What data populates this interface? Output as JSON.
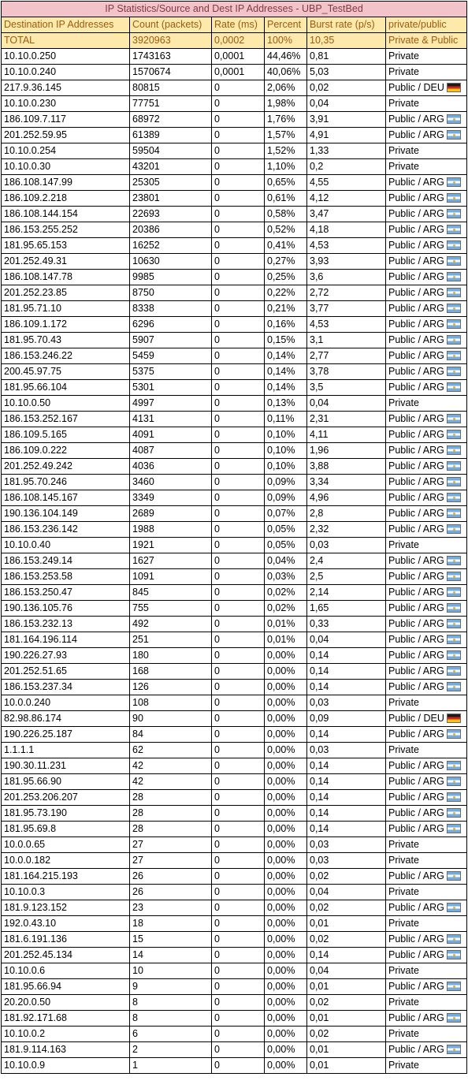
{
  "title": "IP Statistics/Source and Dest IP Addresses - UBP_TestBed",
  "columns": [
    "Destination IP Addresses",
    "Count (packets)",
    "Rate (ms)",
    "Percent",
    "Burst rate (p/s)",
    "private/public"
  ],
  "total": [
    "TOTAL",
    "3920963",
    "0,0002",
    "100%",
    "10,35",
    "Private & Public"
  ],
  "rows": [
    [
      "10.10.0.250",
      "1743163",
      "0,0001",
      "44,46%",
      "0,81",
      "Private",
      ""
    ],
    [
      "10.10.0.240",
      "1570674",
      "0,0001",
      "40,06%",
      "5,03",
      "Private",
      ""
    ],
    [
      "217.9.36.145",
      "80815",
      "0",
      "2,06%",
      "0,02",
      "Public / DEU",
      "deu"
    ],
    [
      "10.10.0.230",
      "77751",
      "0",
      "1,98%",
      "0,04",
      "Private",
      ""
    ],
    [
      "186.109.7.117",
      "68972",
      "0",
      "1,76%",
      "3,91",
      "Public / ARG",
      "arg"
    ],
    [
      "201.252.59.95",
      "61389",
      "0",
      "1,57%",
      "4,91",
      "Public / ARG",
      "arg"
    ],
    [
      "10.10.0.254",
      "59504",
      "0",
      "1,52%",
      "1,33",
      "Private",
      ""
    ],
    [
      "10.10.0.30",
      "43201",
      "0",
      "1,10%",
      "0,2",
      "Private",
      ""
    ],
    [
      "186.108.147.99",
      "25305",
      "0",
      "0,65%",
      "4,55",
      "Public / ARG",
      "arg"
    ],
    [
      "186.109.2.218",
      "23801",
      "0",
      "0,61%",
      "4,12",
      "Public / ARG",
      "arg"
    ],
    [
      "186.108.144.154",
      "22693",
      "0",
      "0,58%",
      "3,47",
      "Public / ARG",
      "arg"
    ],
    [
      "186.153.255.252",
      "20386",
      "0",
      "0,52%",
      "4,18",
      "Public / ARG",
      "arg"
    ],
    [
      "181.95.65.153",
      "16252",
      "0",
      "0,41%",
      "4,53",
      "Public / ARG",
      "arg"
    ],
    [
      "201.252.49.31",
      "10630",
      "0",
      "0,27%",
      "3,93",
      "Public / ARG",
      "arg"
    ],
    [
      "186.108.147.78",
      "9985",
      "0",
      "0,25%",
      "3,6",
      "Public / ARG",
      "arg"
    ],
    [
      "201.252.23.85",
      "8750",
      "0",
      "0,22%",
      "2,72",
      "Public / ARG",
      "arg"
    ],
    [
      "181.95.71.10",
      "8338",
      "0",
      "0,21%",
      "3,77",
      "Public / ARG",
      "arg"
    ],
    [
      "186.109.1.172",
      "6296",
      "0",
      "0,16%",
      "4,53",
      "Public / ARG",
      "arg"
    ],
    [
      "181.95.70.43",
      "5907",
      "0",
      "0,15%",
      "3,1",
      "Public / ARG",
      "arg"
    ],
    [
      "186.153.246.22",
      "5459",
      "0",
      "0,14%",
      "2,77",
      "Public / ARG",
      "arg"
    ],
    [
      "200.45.97.75",
      "5375",
      "0",
      "0,14%",
      "3,78",
      "Public / ARG",
      "arg"
    ],
    [
      "181.95.66.104",
      "5301",
      "0",
      "0,14%",
      "3,5",
      "Public / ARG",
      "arg"
    ],
    [
      "10.10.0.50",
      "4997",
      "0",
      "0,13%",
      "0,04",
      "Private",
      ""
    ],
    [
      "186.153.252.167",
      "4131",
      "0",
      "0,11%",
      "2,31",
      "Public / ARG",
      "arg"
    ],
    [
      "186.109.5.165",
      "4091",
      "0",
      "0,10%",
      "4,11",
      "Public / ARG",
      "arg"
    ],
    [
      "186.109.0.222",
      "4087",
      "0",
      "0,10%",
      "1,96",
      "Public / ARG",
      "arg"
    ],
    [
      "201.252.49.242",
      "4036",
      "0",
      "0,10%",
      "3,88",
      "Public / ARG",
      "arg"
    ],
    [
      "181.95.70.246",
      "3460",
      "0",
      "0,09%",
      "3,34",
      "Public / ARG",
      "arg"
    ],
    [
      "186.108.145.167",
      "3349",
      "0",
      "0,09%",
      "4,96",
      "Public / ARG",
      "arg"
    ],
    [
      "190.136.104.149",
      "2689",
      "0",
      "0,07%",
      "2,8",
      "Public / ARG",
      "arg"
    ],
    [
      "186.153.236.142",
      "1988",
      "0",
      "0,05%",
      "2,32",
      "Public / ARG",
      "arg"
    ],
    [
      "10.10.0.40",
      "1921",
      "0",
      "0,05%",
      "0,03",
      "Private",
      ""
    ],
    [
      "186.153.249.14",
      "1627",
      "0",
      "0,04%",
      "2,4",
      "Public / ARG",
      "arg"
    ],
    [
      "186.153.253.58",
      "1091",
      "0",
      "0,03%",
      "2,5",
      "Public / ARG",
      "arg"
    ],
    [
      "186.153.250.47",
      "845",
      "0",
      "0,02%",
      "2,14",
      "Public / ARG",
      "arg"
    ],
    [
      "190.136.105.76",
      "755",
      "0",
      "0,02%",
      "1,65",
      "Public / ARG",
      "arg"
    ],
    [
      "186.153.232.13",
      "492",
      "0",
      "0,01%",
      "0,33",
      "Public / ARG",
      "arg"
    ],
    [
      "181.164.196.114",
      "251",
      "0",
      "0,01%",
      "0,04",
      "Public / ARG",
      "arg"
    ],
    [
      "190.226.27.93",
      "180",
      "0",
      "0,00%",
      "0,14",
      "Public / ARG",
      "arg"
    ],
    [
      "201.252.51.65",
      "168",
      "0",
      "0,00%",
      "0,14",
      "Public / ARG",
      "arg"
    ],
    [
      "186.153.237.34",
      "126",
      "0",
      "0,00%",
      "0,14",
      "Public / ARG",
      "arg"
    ],
    [
      "10.0.0.240",
      "108",
      "0",
      "0,00%",
      "0,03",
      "Private",
      ""
    ],
    [
      "82.98.86.174",
      "90",
      "0",
      "0,00%",
      "0,09",
      "Public / DEU",
      "deu"
    ],
    [
      "190.226.25.187",
      "84",
      "0",
      "0,00%",
      "0,14",
      "Public / ARG",
      "arg"
    ],
    [
      "1.1.1.1",
      "62",
      "0",
      "0,00%",
      "0,03",
      "Private",
      ""
    ],
    [
      "190.30.11.231",
      "42",
      "0",
      "0,00%",
      "0,14",
      "Public / ARG",
      "arg"
    ],
    [
      "181.95.66.90",
      "42",
      "0",
      "0,00%",
      "0,14",
      "Public / ARG",
      "arg"
    ],
    [
      "201.253.206.207",
      "28",
      "0",
      "0,00%",
      "0,14",
      "Public / ARG",
      "arg"
    ],
    [
      "181.95.73.190",
      "28",
      "0",
      "0,00%",
      "0,14",
      "Public / ARG",
      "arg"
    ],
    [
      "181.95.69.8",
      "28",
      "0",
      "0,00%",
      "0,14",
      "Public / ARG",
      "arg"
    ],
    [
      "10.0.0.65",
      "27",
      "0",
      "0,00%",
      "0,03",
      "Private",
      ""
    ],
    [
      "10.0.0.182",
      "27",
      "0",
      "0,00%",
      "0,03",
      "Private",
      ""
    ],
    [
      "181.164.215.193",
      "26",
      "0",
      "0,00%",
      "0,02",
      "Public / ARG",
      "arg"
    ],
    [
      "10.10.0.3",
      "26",
      "0",
      "0,00%",
      "0,04",
      "Private",
      ""
    ],
    [
      "181.9.123.152",
      "23",
      "0",
      "0,00%",
      "0,02",
      "Public / ARG",
      "arg"
    ],
    [
      "192.0.43.10",
      "18",
      "0",
      "0,00%",
      "0,01",
      "Private",
      ""
    ],
    [
      "181.6.191.136",
      "15",
      "0",
      "0,00%",
      "0,02",
      "Public / ARG",
      "arg"
    ],
    [
      "201.252.45.134",
      "14",
      "0",
      "0,00%",
      "0,14",
      "Public / ARG",
      "arg"
    ],
    [
      "10.10.0.6",
      "10",
      "0",
      "0,00%",
      "0,04",
      "Private",
      ""
    ],
    [
      "181.95.66.94",
      "9",
      "0",
      "0,00%",
      "0,01",
      "Public / ARG",
      "arg"
    ],
    [
      "20.20.0.50",
      "8",
      "0",
      "0,00%",
      "0,02",
      "Private",
      ""
    ],
    [
      "181.92.171.68",
      "8",
      "0",
      "0,00%",
      "0,01",
      "Public / ARG",
      "arg"
    ],
    [
      "10.10.0.2",
      "6",
      "0",
      "0,00%",
      "0,02",
      "Private",
      ""
    ],
    [
      "181.9.114.163",
      "2",
      "0",
      "0,00%",
      "0,01",
      "Public / ARG",
      "arg"
    ],
    [
      "10.10.0.9",
      "1",
      "0",
      "0,00%",
      "0,01",
      "Private",
      ""
    ]
  ],
  "colors": {
    "title_bg": "#f2c4c9",
    "title_text": "#7f3a45",
    "header_bg": "#fde9a9",
    "header_text": "#9c5b14"
  },
  "flag_icons": {
    "deu": "germany-flag-icon",
    "arg": "argentina-flag-icon"
  }
}
